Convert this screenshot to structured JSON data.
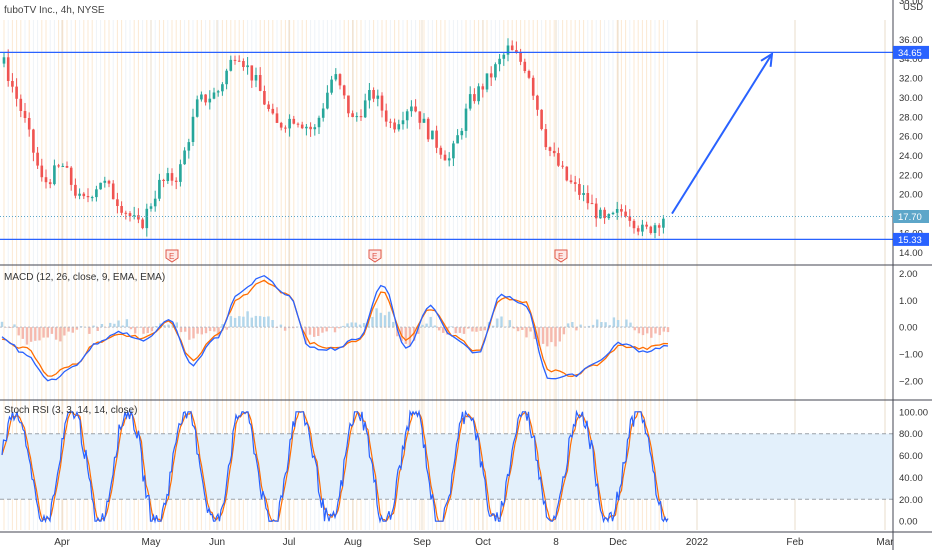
{
  "chart_data": [
    {
      "type": "candlestick",
      "title": "fuboTV Inc., 4h, NYSE",
      "currency": "USD",
      "y_axis_ticks": [
        "14.00",
        "16.00",
        "18.00",
        "20.00",
        "22.00",
        "24.00",
        "26.00",
        "28.00",
        "30.00",
        "32.00",
        "34.00",
        "36.00"
      ],
      "ylim": [
        13.0,
        38.0
      ],
      "top_cut_label": "38.00",
      "x_axis_labels": [
        "Apr",
        "May",
        "Jun",
        "Jul",
        "Aug",
        "Sep",
        "Oct",
        "8",
        "Dec",
        "2022",
        "Feb",
        "Mar"
      ],
      "price_series_approx": [
        {
          "x": "Mar",
          "y": 33.5
        },
        {
          "x": "Mar",
          "y": 28.0
        },
        {
          "x": "Mar",
          "y": 21.0
        },
        {
          "x": "Apr",
          "y": 23.0
        },
        {
          "x": "Apr",
          "y": 19.0
        },
        {
          "x": "Apr",
          "y": 21.5
        },
        {
          "x": "May",
          "y": 19.0
        },
        {
          "x": "May",
          "y": 16.5
        },
        {
          "x": "May",
          "y": 21.0
        },
        {
          "x": "Jun",
          "y": 22.0
        },
        {
          "x": "Jun",
          "y": 29.5
        },
        {
          "x": "Jun",
          "y": 30.5
        },
        {
          "x": "Jul",
          "y": 35.0
        },
        {
          "x": "Jul",
          "y": 31.5
        },
        {
          "x": "Jul",
          "y": 27.0
        },
        {
          "x": "Aug",
          "y": 28.0
        },
        {
          "x": "Aug",
          "y": 26.5
        },
        {
          "x": "Aug",
          "y": 32.5
        },
        {
          "x": "Aug",
          "y": 27.5
        },
        {
          "x": "Sep",
          "y": 30.5
        },
        {
          "x": "Sep",
          "y": 27.0
        },
        {
          "x": "Sep",
          "y": 29.5
        },
        {
          "x": "Oct",
          "y": 26.0
        },
        {
          "x": "Oct",
          "y": 23.5
        },
        {
          "x": "Oct",
          "y": 29.5
        },
        {
          "x": "Oct",
          "y": 32.0
        },
        {
          "x": "8",
          "y": 35.0
        },
        {
          "x": "8",
          "y": 33.0
        },
        {
          "x": "8",
          "y": 25.0
        },
        {
          "x": "Nov",
          "y": 21.5
        },
        {
          "x": "Nov",
          "y": 19.5
        },
        {
          "x": "Dec",
          "y": 17.0
        },
        {
          "x": "Dec",
          "y": 18.5
        },
        {
          "x": "Dec",
          "y": 16.0
        },
        {
          "x": "Dec",
          "y": 17.7
        }
      ],
      "price_labels": [
        {
          "text": "34.65",
          "value": 34.65,
          "color": "#2962ff"
        },
        {
          "text": "17.70",
          "value": 17.7,
          "color": "#5da6c9"
        },
        {
          "text": "15.33",
          "value": 15.33,
          "color": "#2962ff"
        }
      ],
      "horizontal_lines": [
        34.65,
        15.33
      ],
      "earnings_markers": {
        "label": "E",
        "x": [
          "May",
          "Aug",
          "8"
        ]
      },
      "projection_arrow": {
        "from": {
          "x": "Dec",
          "y": 18.0
        },
        "to": {
          "x": "2022",
          "y": 34.5
        }
      },
      "colors": {
        "up": "#26a69a",
        "down": "#ef5350",
        "line": "#2962ff",
        "arrow": "#2962ff"
      }
    },
    {
      "type": "line",
      "title": "MACD (12, 26, close, 9, EMA, EMA)",
      "y_axis_ticks": [
        "2.00",
        "1.00",
        "0.00",
        "−1.00",
        "−2.00"
      ],
      "ylim": [
        -2.6,
        2.2
      ],
      "series": [
        {
          "name": "",
          "color": "#2962ff",
          "values": [
            -0.4,
            -1.0,
            -2.0,
            -1.5,
            -0.6,
            -0.2,
            -0.5,
            0.3,
            -1.4,
            -0.4,
            1.3,
            1.9,
            1.2,
            -0.8,
            -0.8,
            -0.4,
            1.6,
            -0.8,
            0.8,
            -0.4,
            -1.0,
            1.2,
            0.8,
            -1.9,
            -1.8,
            -1.3,
            -0.6,
            -0.9,
            -0.7
          ]
        },
        {
          "name": "",
          "color": "#ff6d00",
          "values": [
            -0.5,
            -0.8,
            -1.8,
            -1.4,
            -0.6,
            -0.3,
            -0.4,
            0.2,
            -1.2,
            -0.3,
            1.1,
            1.7,
            1.2,
            -0.6,
            -0.8,
            -0.5,
            1.3,
            -0.5,
            0.7,
            -0.3,
            -0.9,
            1.1,
            0.9,
            -1.6,
            -1.8,
            -1.4,
            -0.7,
            -0.8,
            -0.6
          ]
        }
      ]
    },
    {
      "type": "line",
      "title": "Stoch RSI (3, 3, 14, 14, close)",
      "y_axis_ticks": [
        "100.00",
        "80.00",
        "60.00",
        "40.00",
        "20.00",
        "0.00"
      ],
      "ylim": [
        -8,
        108
      ],
      "band": [
        20,
        80
      ],
      "series": [
        {
          "name": "",
          "color": "#2962ff"
        },
        {
          "name": "",
          "color": "#ff6d00"
        }
      ]
    }
  ],
  "colors": {
    "band_fill": "#e3f0fb",
    "grid": "#f3e3cc",
    "border": "#d1d4dc"
  }
}
